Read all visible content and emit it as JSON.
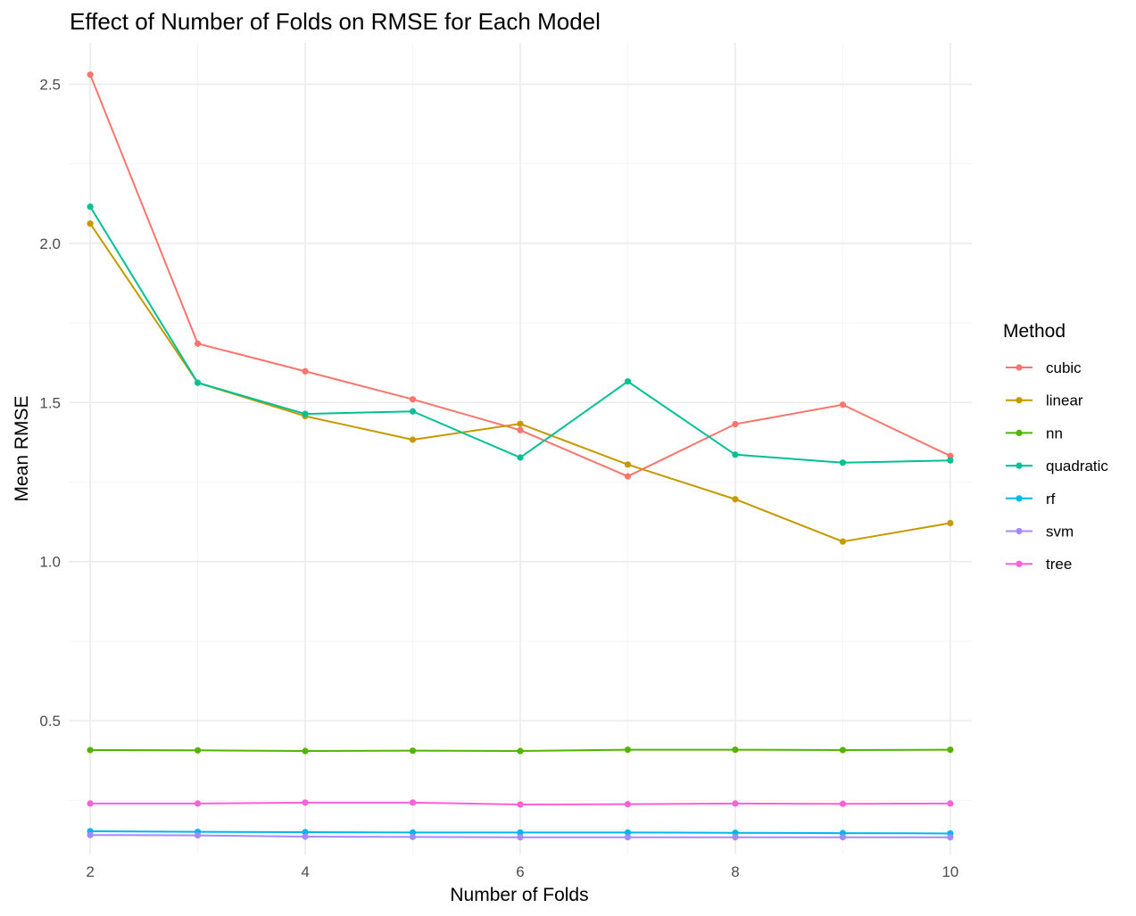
{
  "chart_data": {
    "type": "line",
    "title": "Effect of Number of Folds on RMSE for Each Model",
    "xlabel": "Number of Folds",
    "ylabel": "Mean RMSE",
    "x": [
      2,
      3,
      4,
      5,
      6,
      7,
      8,
      9,
      10
    ],
    "xlim": [
      1.8,
      10.2
    ],
    "ylim": [
      0.08,
      2.63
    ],
    "x_ticks": [
      2,
      4,
      6,
      8,
      10
    ],
    "x_tick_labels": [
      "2",
      "4",
      "6",
      "8",
      "10"
    ],
    "y_ticks": [
      0.5,
      1.0,
      1.5,
      2.0,
      2.5
    ],
    "y_tick_labels": [
      "0.5",
      "1.0",
      "1.5",
      "2.0",
      "2.5"
    ],
    "y_minor_ticks": [
      0.25,
      0.75,
      1.25,
      1.75,
      2.25
    ],
    "grid": true,
    "legend": {
      "title": "Method",
      "position": "right"
    },
    "series": [
      {
        "name": "cubic",
        "color": "#F8766D",
        "values": [
          2.53,
          1.685,
          1.598,
          1.51,
          1.413,
          1.268,
          1.432,
          1.493,
          1.332
        ]
      },
      {
        "name": "linear",
        "color": "#C49A00",
        "values": [
          2.062,
          1.562,
          1.457,
          1.383,
          1.433,
          1.305,
          1.196,
          1.063,
          1.121
        ]
      },
      {
        "name": "nn",
        "color": "#53B400",
        "values": [
          0.408,
          0.407,
          0.405,
          0.406,
          0.405,
          0.409,
          0.409,
          0.408,
          0.409
        ]
      },
      {
        "name": "quadratic",
        "color": "#00C094",
        "values": [
          2.115,
          1.562,
          1.464,
          1.472,
          1.327,
          1.566,
          1.336,
          1.311,
          1.318
        ]
      },
      {
        "name": "rf",
        "color": "#00B6EB",
        "values": [
          0.153,
          0.151,
          0.15,
          0.149,
          0.149,
          0.149,
          0.148,
          0.147,
          0.146
        ]
      },
      {
        "name": "svm",
        "color": "#A58AFF",
        "values": [
          0.141,
          0.14,
          0.136,
          0.135,
          0.134,
          0.134,
          0.134,
          0.134,
          0.134
        ]
      },
      {
        "name": "tree",
        "color": "#FB61D7",
        "values": [
          0.24,
          0.24,
          0.243,
          0.243,
          0.237,
          0.238,
          0.24,
          0.239,
          0.24
        ]
      }
    ]
  }
}
